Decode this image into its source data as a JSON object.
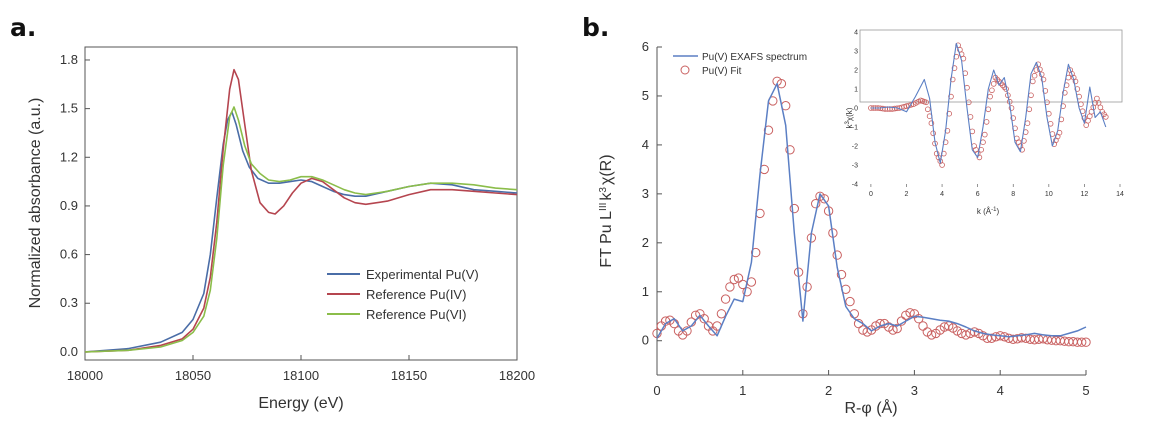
{
  "panels": {
    "a_label": "a.",
    "b_label": "b."
  },
  "colors": {
    "experimental": "#4a6da7",
    "pu_iv": "#b5454f",
    "pu_vi": "#8bbd4a",
    "exafs_line": "#5b7fc4",
    "fit_marker": "#c96060"
  },
  "chart_data": [
    {
      "id": "a",
      "type": "line",
      "xlabel": "Energy (eV)",
      "ylabel": "Normalized absorbance (a.u.)",
      "xlim": [
        18000,
        18200
      ],
      "ylim": [
        -0.05,
        1.88
      ],
      "xticks": [
        "18000",
        "18050",
        "18100",
        "18150",
        "18200"
      ],
      "yticks": [
        "0.0",
        "0.3",
        "0.6",
        "0.9",
        "1.2",
        "1.5",
        "1.8"
      ],
      "legend_position": "lower-right",
      "series": [
        {
          "name": "Experimental Pu(V)",
          "color": "#4a6da7",
          "x": [
            18000,
            18020,
            18035,
            18045,
            18050,
            18055,
            18058,
            18061,
            18064,
            18066,
            18068,
            18070,
            18073,
            18076,
            18080,
            18085,
            18090,
            18095,
            18100,
            18105,
            18110,
            18115,
            18120,
            18125,
            18130,
            18140,
            18150,
            18160,
            18170,
            18180,
            18190,
            18200
          ],
          "y": [
            0.0,
            0.02,
            0.06,
            0.12,
            0.2,
            0.36,
            0.6,
            0.95,
            1.28,
            1.43,
            1.48,
            1.4,
            1.24,
            1.14,
            1.07,
            1.04,
            1.04,
            1.05,
            1.06,
            1.05,
            1.02,
            0.99,
            0.97,
            0.96,
            0.96,
            0.99,
            1.02,
            1.04,
            1.03,
            1.0,
            0.99,
            0.98
          ]
        },
        {
          "name": "Reference Pu(IV)",
          "color": "#b5454f",
          "x": [
            18000,
            18020,
            18035,
            18045,
            18050,
            18055,
            18058,
            18061,
            18064,
            18067,
            18069,
            18071,
            18074,
            18077,
            18081,
            18085,
            18088,
            18092,
            18096,
            18100,
            18105,
            18110,
            18115,
            18120,
            18125,
            18130,
            18140,
            18150,
            18160,
            18170,
            18180,
            18190,
            18200
          ],
          "y": [
            0.0,
            0.01,
            0.04,
            0.08,
            0.14,
            0.27,
            0.46,
            0.8,
            1.25,
            1.62,
            1.74,
            1.68,
            1.4,
            1.12,
            0.92,
            0.86,
            0.85,
            0.9,
            0.98,
            1.04,
            1.07,
            1.05,
            1.0,
            0.95,
            0.92,
            0.91,
            0.93,
            0.97,
            1.0,
            1.0,
            0.99,
            0.98,
            0.97
          ]
        },
        {
          "name": "Reference Pu(VI)",
          "color": "#8bbd4a",
          "x": [
            18000,
            18020,
            18035,
            18045,
            18050,
            18055,
            18058,
            18061,
            18064,
            18067,
            18069,
            18071,
            18074,
            18077,
            18081,
            18085,
            18090,
            18095,
            18100,
            18105,
            18110,
            18115,
            18120,
            18125,
            18130,
            18140,
            18150,
            18160,
            18170,
            18180,
            18190,
            18200
          ],
          "y": [
            0.0,
            0.01,
            0.03,
            0.07,
            0.12,
            0.22,
            0.38,
            0.7,
            1.15,
            1.45,
            1.51,
            1.43,
            1.27,
            1.16,
            1.1,
            1.06,
            1.05,
            1.06,
            1.08,
            1.08,
            1.06,
            1.03,
            1.0,
            0.98,
            0.97,
            0.99,
            1.02,
            1.04,
            1.04,
            1.03,
            1.01,
            1.0
          ]
        }
      ]
    },
    {
      "id": "b",
      "type": "line",
      "xlabel": "R-φ (Å)",
      "ylabel": "FT Pu L",
      "ylabel_sup": "III",
      "ylabel_tail": "k",
      "ylabel_sup2": "3",
      "ylabel_end": "χ(R)",
      "xlim": [
        0,
        5
      ],
      "ylim": [
        -0.5,
        6
      ],
      "xticks": [
        "0",
        "1",
        "2",
        "3",
        "4",
        "5"
      ],
      "yticks": [
        "0",
        "1",
        "2",
        "3",
        "4",
        "5",
        "6"
      ],
      "legend_position": "top-left",
      "series": [
        {
          "name": "Pu(V) EXAFS spectrum",
          "color": "#5b7fc4",
          "x": [
            0.0,
            0.1,
            0.2,
            0.3,
            0.4,
            0.5,
            0.6,
            0.7,
            0.8,
            0.9,
            1.0,
            1.1,
            1.2,
            1.3,
            1.4,
            1.5,
            1.6,
            1.7,
            1.8,
            1.9,
            2.0,
            2.1,
            2.2,
            2.3,
            2.4,
            2.5,
            2.6,
            2.7,
            2.8,
            2.9,
            3.0,
            3.1,
            3.2,
            3.3,
            3.4,
            3.5,
            3.6,
            3.7,
            3.8,
            3.9,
            4.0,
            4.1,
            4.2,
            4.3,
            4.4,
            4.5,
            4.6,
            4.7,
            4.8,
            4.9,
            5.0
          ],
          "y": [
            0.05,
            0.35,
            0.45,
            0.2,
            0.3,
            0.52,
            0.3,
            0.1,
            0.5,
            0.85,
            0.8,
            1.6,
            3.4,
            4.9,
            5.25,
            4.4,
            2.2,
            0.4,
            2.2,
            3.0,
            2.75,
            1.5,
            0.7,
            0.45,
            0.35,
            0.2,
            0.3,
            0.35,
            0.3,
            0.4,
            0.5,
            0.48,
            0.45,
            0.42,
            0.4,
            0.35,
            0.28,
            0.2,
            0.15,
            0.12,
            0.1,
            0.08,
            0.1,
            0.12,
            0.15,
            0.12,
            0.1,
            0.1,
            0.15,
            0.2,
            0.28
          ]
        },
        {
          "name": "Pu(V) Fit",
          "color": "#c96060",
          "x": [
            0.0,
            0.05,
            0.1,
            0.15,
            0.2,
            0.25,
            0.3,
            0.35,
            0.4,
            0.45,
            0.5,
            0.55,
            0.6,
            0.65,
            0.7,
            0.75,
            0.8,
            0.85,
            0.9,
            0.95,
            1.0,
            1.05,
            1.1,
            1.15,
            1.2,
            1.25,
            1.3,
            1.35,
            1.4,
            1.45,
            1.5,
            1.55,
            1.6,
            1.65,
            1.7,
            1.75,
            1.8,
            1.85,
            1.9,
            1.95,
            2.0,
            2.05,
            2.1,
            2.15,
            2.2,
            2.25,
            2.3,
            2.35,
            2.4,
            2.45,
            2.5,
            2.55,
            2.6,
            2.65,
            2.7,
            2.75,
            2.8,
            2.85,
            2.9,
            2.95,
            3.0,
            3.05,
            3.1,
            3.15,
            3.2,
            3.25,
            3.3,
            3.35,
            3.4,
            3.45,
            3.5,
            3.55,
            3.6,
            3.65,
            3.7,
            3.75,
            3.8,
            3.85,
            3.9,
            3.95,
            4.0,
            4.05,
            4.1,
            4.15,
            4.2,
            4.25,
            4.3,
            4.35,
            4.4,
            4.45,
            4.5,
            4.55,
            4.6,
            4.65,
            4.7,
            4.75,
            4.8,
            4.85,
            4.9,
            4.95,
            5.0
          ],
          "y": [
            0.15,
            0.3,
            0.4,
            0.42,
            0.35,
            0.2,
            0.12,
            0.2,
            0.38,
            0.52,
            0.55,
            0.45,
            0.3,
            0.2,
            0.3,
            0.55,
            0.85,
            1.1,
            1.25,
            1.28,
            1.15,
            1.0,
            1.2,
            1.8,
            2.6,
            3.5,
            4.3,
            4.9,
            5.3,
            5.25,
            4.8,
            3.9,
            2.7,
            1.4,
            0.55,
            1.1,
            2.1,
            2.8,
            2.95,
            2.9,
            2.65,
            2.2,
            1.75,
            1.35,
            1.05,
            0.8,
            0.55,
            0.35,
            0.22,
            0.18,
            0.22,
            0.3,
            0.35,
            0.35,
            0.28,
            0.22,
            0.25,
            0.4,
            0.52,
            0.57,
            0.55,
            0.45,
            0.3,
            0.18,
            0.12,
            0.15,
            0.22,
            0.28,
            0.3,
            0.26,
            0.2,
            0.15,
            0.12,
            0.15,
            0.18,
            0.15,
            0.1,
            0.05,
            0.05,
            0.08,
            0.1,
            0.08,
            0.05,
            0.03,
            0.04,
            0.06,
            0.05,
            0.03,
            0.02,
            0.03,
            0.04,
            0.02,
            0.01,
            0.0,
            0.0,
            -0.01,
            -0.02,
            -0.02,
            -0.03,
            -0.03,
            -0.03
          ]
        }
      ]
    },
    {
      "id": "b_inset",
      "type": "line",
      "xlabel": "k (Å",
      "xlabel_sup": "-1",
      "xlabel_end": ")",
      "ylabel": "k",
      "ylabel_sup": "3",
      "ylabel_end": "χ(k)",
      "xlim": [
        -0.5,
        14
      ],
      "ylim": [
        -4,
        4
      ],
      "xticks": [
        "0",
        "2",
        "4",
        "6",
        "8",
        "10",
        "12",
        "14"
      ],
      "yticks": [
        "-4",
        "-3",
        "-2",
        "-1",
        "0",
        "1",
        "2",
        "3",
        "4"
      ],
      "series": [
        {
          "name": "",
          "color": "#5b7fc4",
          "x": [
            0,
            0.5,
            1,
            1.5,
            2,
            2.5,
            3,
            3.3,
            3.6,
            3.9,
            4.2,
            4.5,
            4.8,
            5.1,
            5.4,
            5.7,
            6.0,
            6.3,
            6.6,
            6.9,
            7.2,
            7.5,
            7.8,
            8.1,
            8.4,
            8.7,
            9.0,
            9.3,
            9.6,
            9.9,
            10.2,
            10.5,
            10.8,
            11.1,
            11.4,
            11.7,
            12.0,
            12.3,
            12.6,
            12.9,
            13.2
          ],
          "y": [
            0.0,
            0.0,
            0.05,
            0.0,
            -0.2,
            0.6,
            1.5,
            0.5,
            -1.8,
            -2.9,
            -1.2,
            1.5,
            3.4,
            2.5,
            0.0,
            -2.2,
            -2.6,
            -1.0,
            1.0,
            2.0,
            1.2,
            1.6,
            0.2,
            -1.8,
            -2.3,
            -0.5,
            1.8,
            2.4,
            1.6,
            -0.5,
            -2.0,
            -1.2,
            0.8,
            2.3,
            1.5,
            0.0,
            -0.8,
            1.1,
            -0.5,
            -0.2,
            -1.0
          ]
        },
        {
          "name": "",
          "color": "#c96060",
          "x": [
            0,
            0.4,
            0.8,
            1.2,
            1.6,
            2.0,
            2.4,
            2.8,
            3.1,
            3.4,
            3.7,
            4.0,
            4.3,
            4.6,
            4.9,
            5.2,
            5.5,
            5.8,
            6.1,
            6.4,
            6.7,
            7.0,
            7.3,
            7.6,
            7.9,
            8.2,
            8.5,
            8.8,
            9.1,
            9.4,
            9.7,
            10.0,
            10.3,
            10.6,
            10.9,
            11.2,
            11.5,
            11.8,
            12.1,
            12.4,
            12.7,
            13.0,
            13.3
          ],
          "y": [
            0.0,
            0.0,
            -0.05,
            -0.05,
            0.0,
            0.1,
            0.2,
            0.4,
            0.3,
            -0.8,
            -2.4,
            -3.0,
            -1.2,
            1.5,
            3.3,
            2.6,
            0.3,
            -2.0,
            -2.6,
            -1.4,
            0.6,
            1.6,
            1.3,
            1.0,
            0.0,
            -1.6,
            -2.2,
            -0.8,
            1.4,
            2.3,
            1.5,
            -0.3,
            -1.9,
            -1.3,
            0.8,
            2.0,
            1.4,
            0.2,
            -0.9,
            -0.2,
            0.5,
            -0.2,
            -0.6
          ]
        }
      ]
    }
  ]
}
